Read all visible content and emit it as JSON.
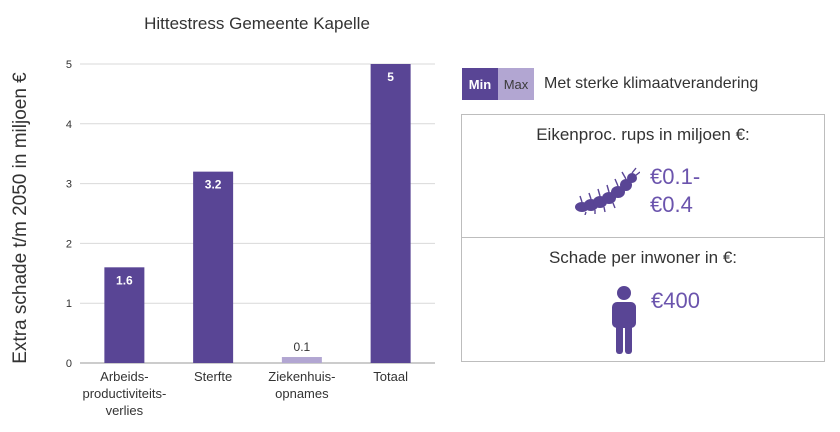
{
  "chart_data": {
    "type": "bar",
    "title": "Hittestress Gemeente Kapelle",
    "ylabel": "Extra schade t/m 2050 in miljoen €",
    "xlabel": "",
    "ylim": [
      0,
      5
    ],
    "yticks": [
      "0",
      "1",
      "2",
      "3",
      "4",
      "5"
    ],
    "grid": true,
    "categories": [
      [
        "Arbeids-",
        "productiviteits-",
        "verlies"
      ],
      [
        "Sterfte"
      ],
      [
        "Ziekenhuis-",
        "opnames"
      ],
      [
        "Totaal"
      ]
    ],
    "values": [
      1.6,
      3.2,
      0.1,
      5
    ],
    "value_labels": [
      "1.6",
      "3.2",
      "0.1",
      "5"
    ],
    "bar_colors": [
      "#594595",
      "#594595",
      "#b2a6d2",
      "#594595"
    ]
  },
  "legend": {
    "min_label": "Min",
    "max_label": "Max",
    "text": "Met sterke klimaatverandering",
    "min_color": "#594595",
    "max_color": "#b2a6d2"
  },
  "panels": {
    "caterpillar": {
      "title": "Eikenproc. rups in miljoen €:",
      "value_line1": "€0.1-",
      "value_line2": "€0.4",
      "icon": "caterpillar-icon"
    },
    "per_resident": {
      "title": "Schade per inwoner in €:",
      "value": "€400",
      "icon": "person-icon"
    }
  },
  "colors": {
    "accent": "#594595",
    "light": "#b2a6d2",
    "value_text": "#6b54ad"
  }
}
